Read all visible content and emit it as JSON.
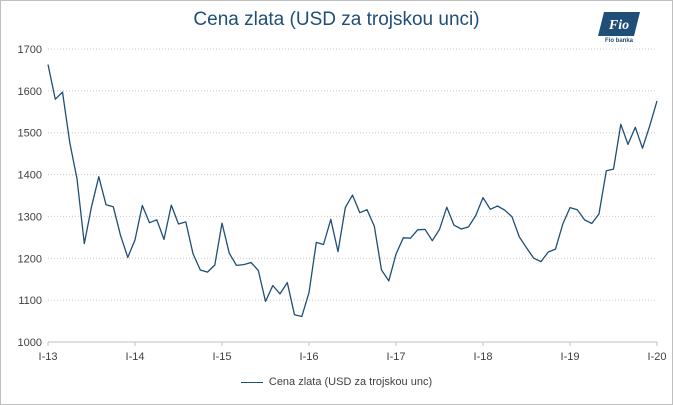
{
  "logo": {
    "icon": "fio-banka-logo",
    "mark": "Fio",
    "word": "Fio banka",
    "color": "#1f4e79"
  },
  "chart_data": {
    "type": "line",
    "title": "Cena zlata (USD za trojskou unci)",
    "xlabel": "",
    "ylabel": "",
    "ylim": [
      1000,
      1700
    ],
    "yticks": [
      1000,
      1100,
      1200,
      1300,
      1400,
      1500,
      1600,
      1700
    ],
    "xlim": [
      0,
      84
    ],
    "xticks": [
      {
        "x": 0,
        "label": "I-13"
      },
      {
        "x": 12,
        "label": "I-14"
      },
      {
        "x": 24,
        "label": "I-15"
      },
      {
        "x": 36,
        "label": "I-16"
      },
      {
        "x": 48,
        "label": "I-17"
      },
      {
        "x": 60,
        "label": "I-18"
      },
      {
        "x": 72,
        "label": "I-19"
      },
      {
        "x": 84,
        "label": "I-20"
      }
    ],
    "grid": "horizontal dotted",
    "legend_position": "bottom",
    "series": [
      {
        "name": "Cena zlata (USD za trojskou unc)",
        "color": "#1f4e79",
        "values": [
          1663,
          1580,
          1597,
          1476,
          1390,
          1235,
          1323,
          1395,
          1328,
          1323,
          1255,
          1202,
          1244,
          1326,
          1285,
          1292,
          1245,
          1327,
          1282,
          1287,
          1211,
          1172,
          1167,
          1184,
          1284,
          1212,
          1183,
          1185,
          1190,
          1171,
          1097,
          1135,
          1115,
          1142,
          1065,
          1061,
          1118,
          1238,
          1233,
          1293,
          1216,
          1321,
          1351,
          1309,
          1316,
          1277,
          1172,
          1146,
          1210,
          1249,
          1248,
          1268,
          1269,
          1242,
          1269,
          1322,
          1279,
          1270,
          1275,
          1302,
          1345,
          1317,
          1325,
          1315,
          1299,
          1251,
          1225,
          1200,
          1192,
          1215,
          1222,
          1282,
          1321,
          1316,
          1292,
          1283,
          1306,
          1409,
          1413,
          1520,
          1472,
          1513,
          1463,
          1517,
          1576
        ]
      }
    ]
  }
}
